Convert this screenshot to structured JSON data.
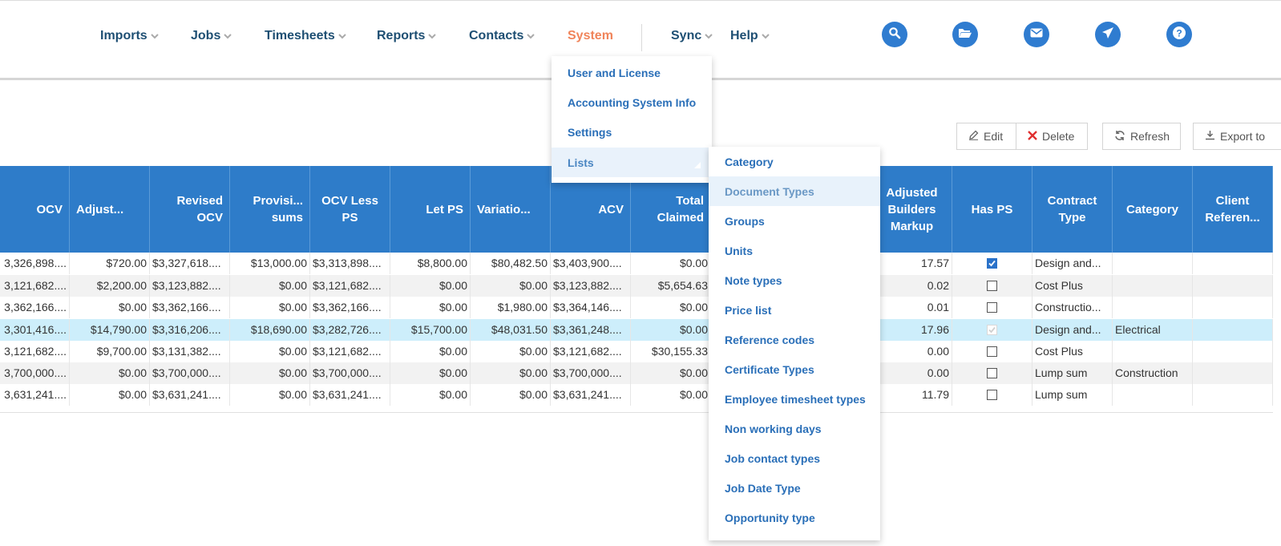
{
  "nav": {
    "items": [
      {
        "label": "Imports"
      },
      {
        "label": "Jobs"
      },
      {
        "label": "Timesheets"
      },
      {
        "label": "Reports"
      },
      {
        "label": "Contacts"
      },
      {
        "label": "System"
      },
      {
        "label": "Sync"
      },
      {
        "label": "Help"
      }
    ],
    "icons": [
      "search-icon",
      "folder-open-icon",
      "mail-icon",
      "send-icon",
      "help-icon"
    ],
    "accent_color": "#f0845a",
    "brand_color": "#2f7cd0"
  },
  "toolbar": {
    "edit": "Edit",
    "delete": "Delete",
    "refresh": "Refresh",
    "export": "Export to"
  },
  "system_menu": {
    "items": [
      "User and License",
      "Accounting System Info",
      "Settings",
      "Lists"
    ]
  },
  "lists_menu": {
    "items": [
      "Category",
      "Document Types",
      "Groups",
      "Units",
      "Note types",
      "Price list",
      "Reference codes",
      "Certificate Types",
      "Employee timesheet types",
      "Non working days",
      "Job contact types",
      "Job Date Type",
      "Opportunity type"
    ]
  },
  "table": {
    "headers": {
      "ocv": "OCV",
      "adjust": "Adjust...",
      "revised_ocv": "Revised OCV",
      "provisional": "Provisi... sums",
      "ocv_less_ps": "OCV Less PS",
      "let_ps": "Let PS",
      "variations": "Variatio...",
      "acv": "ACV",
      "total_claimed": "Total Claimed",
      "adjusted_builders_markup": "Adjusted Builders Markup",
      "has_ps": "Has PS",
      "contract_type": "Contract Type",
      "category": "Category",
      "client_reference": "Client Referen..."
    },
    "rows": [
      {
        "ocv": "3,326,898....",
        "adjust": "$720.00",
        "revised_ocv": "$3,327,618....",
        "provisional": "$13,000.00",
        "ocv_less_ps": "$3,313,898....",
        "let_ps": "$8,800.00",
        "variations": "$80,482.50",
        "acv": "$3,403,900....",
        "total_claimed": "$0.00",
        "markup": "17.57",
        "has_ps": true,
        "contract_type": "Design and...",
        "category": "",
        "client_ref": ""
      },
      {
        "ocv": "3,121,682....",
        "adjust": "$2,200.00",
        "revised_ocv": "$3,123,882....",
        "provisional": "$0.00",
        "ocv_less_ps": "$3,121,682....",
        "let_ps": "$0.00",
        "variations": "$0.00",
        "acv": "$3,123,882....",
        "total_claimed": "$5,654.63",
        "markup": "0.02",
        "has_ps": false,
        "contract_type": "Cost Plus",
        "category": "",
        "client_ref": ""
      },
      {
        "ocv": "3,362,166....",
        "adjust": "$0.00",
        "revised_ocv": "$3,362,166....",
        "provisional": "$0.00",
        "ocv_less_ps": "$3,362,166....",
        "let_ps": "$0.00",
        "variations": "$1,980.00",
        "acv": "$3,364,146....",
        "total_claimed": "$0.00",
        "markup": "0.01",
        "has_ps": false,
        "contract_type": "Constructio...",
        "category": "",
        "client_ref": ""
      },
      {
        "ocv": "3,301,416....",
        "adjust": "$14,790.00",
        "revised_ocv": "$3,316,206....",
        "provisional": "$18,690.00",
        "ocv_less_ps": "$3,282,726....",
        "let_ps": "$15,700.00",
        "variations": "$48,031.50",
        "acv": "$3,361,248....",
        "total_claimed": "$0.00",
        "markup": "17.96",
        "has_ps": true,
        "contract_type": "Design and...",
        "category": "Electrical",
        "client_ref": ""
      },
      {
        "ocv": "3,121,682....",
        "adjust": "$9,700.00",
        "revised_ocv": "$3,131,382....",
        "provisional": "$0.00",
        "ocv_less_ps": "$3,121,682....",
        "let_ps": "$0.00",
        "variations": "$0.00",
        "acv": "$3,121,682....",
        "total_claimed": "$30,155.33",
        "markup": "0.00",
        "has_ps": false,
        "contract_type": "Cost Plus",
        "category": "",
        "client_ref": ""
      },
      {
        "ocv": "3,700,000....",
        "adjust": "$0.00",
        "revised_ocv": "$3,700,000....",
        "provisional": "$0.00",
        "ocv_less_ps": "$3,700,000....",
        "let_ps": "$0.00",
        "variations": "$0.00",
        "acv": "$3,700,000....",
        "total_claimed": "$0.00",
        "markup": "0.00",
        "has_ps": false,
        "contract_type": "Lump sum",
        "category": "Construction",
        "client_ref": ""
      },
      {
        "ocv": "3,631,241....",
        "adjust": "$0.00",
        "revised_ocv": "$3,631,241....",
        "provisional": "$0.00",
        "ocv_less_ps": "$3,631,241....",
        "let_ps": "$0.00",
        "variations": "$0.00",
        "acv": "$3,631,241....",
        "total_claimed": "$0.00",
        "markup": "11.79",
        "has_ps": false,
        "contract_type": "Lump sum",
        "category": "",
        "client_ref": ""
      }
    ],
    "header_color": "#2e7cc9",
    "selected_row_color": "#cdeefb"
  }
}
